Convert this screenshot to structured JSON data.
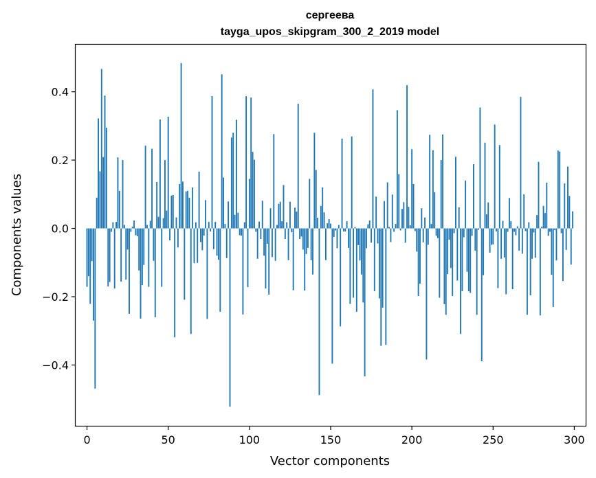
{
  "chart_data": {
    "type": "bar",
    "title": "сергеева",
    "subtitle": "tayga_upos_skipgram_300_2_2019 model",
    "xlabel": "Vector components",
    "ylabel": "Components values",
    "xlim": [
      -7,
      307
    ],
    "ylim": [
      -0.578,
      0.538
    ],
    "xticks": [
      0,
      50,
      100,
      150,
      200,
      250,
      300
    ],
    "yticks": [
      -0.4,
      -0.2,
      0.0,
      0.2,
      0.4
    ],
    "ytick_labels": [
      "−0.4",
      "−0.2",
      "0.0",
      "0.2",
      "0.4"
    ],
    "bar_color": "#1f77b4",
    "values": [
      -0.171,
      -0.14,
      -0.221,
      -0.096,
      -0.27,
      -0.469,
      0.09,
      0.322,
      0.167,
      0.467,
      0.209,
      0.389,
      0.295,
      -0.17,
      -0.157,
      -0.01,
      0.018,
      -0.176,
      0.019,
      0.208,
      0.11,
      -0.156,
      0.2,
      0.01,
      -0.15,
      -0.062,
      -0.25,
      -0.01,
      0.005,
      0.023,
      -0.02,
      -0.023,
      -0.123,
      -0.264,
      -0.166,
      -0.107,
      0.242,
      0.01,
      -0.171,
      0.022,
      0.233,
      -0.095,
      -0.26,
      0.136,
      0.034,
      0.319,
      -0.171,
      0.03,
      0.2,
      0.052,
      0.327,
      -0.035,
      0.096,
      0.098,
      -0.319,
      0.032,
      -0.056,
      0.13,
      0.484,
      0.137,
      -0.209,
      0.108,
      0.11,
      0.09,
      -0.309,
      0.12,
      -0.102,
      0.018,
      -0.101,
      0.166,
      -0.04,
      -0.064,
      -0.021,
      0.083,
      -0.265,
      0.019,
      -0.009,
      0.387,
      -0.061,
      0.019,
      -0.08,
      -0.092,
      -0.244,
      0.451,
      0.149,
      0.013,
      -0.087,
      0.079,
      -0.522,
      0.266,
      0.28,
      0.04,
      0.318,
      0.046,
      -0.02,
      -0.021,
      -0.252,
      0.018,
      0.387,
      -0.172,
      0.145,
      0.383,
      0.224,
      0.201,
      -0.01,
      -0.089,
      0.02,
      -0.031,
      0.081,
      -0.08,
      -0.176,
      -0.045,
      -0.194,
      0.059,
      -0.084,
      0.276,
      -0.095,
      0.01,
      0.072,
      0.078,
      0.021,
      0.127,
      -0.031,
      0.018,
      -0.093,
      0.078,
      -0.011,
      -0.181,
      0.061,
      0.049,
      0.365,
      -0.031,
      -0.024,
      -0.062,
      -0.182,
      -0.075,
      -0.057,
      0.145,
      -0.093,
      -0.135,
      0.28,
      0.171,
      0.031,
      -0.488,
      0.066,
      0.12,
      0.047,
      -0.093,
      0.015,
      0.027,
      0.014,
      -0.396,
      -0.025,
      -0.006,
      -0.058,
      0.01,
      -0.287,
      0.263,
      -0.009,
      -0.009,
      0.021,
      -0.057,
      -0.221,
      0.269,
      -0.203,
      0.004,
      -0.244,
      -0.049,
      -0.094,
      -0.135,
      -0.217,
      -0.433,
      -0.058,
      0.012,
      0.023,
      -0.042,
      0.407,
      -0.184,
      0.093,
      -0.044,
      -0.205,
      -0.344,
      -0.232,
      0.08,
      -0.341,
      0.135,
      0.004,
      -0.04,
      0.099,
      -0.01,
      0.013,
      0.346,
      0.159,
      -0.006,
      0.057,
      0.077,
      -0.042,
      0.419,
      0.063,
      0.009,
      0.232,
      0.13,
      -0.008,
      -0.068,
      -0.198,
      -0.162,
      0.059,
      -0.041,
      0.032,
      -0.384,
      -0.048,
      0.274,
      0.013,
      0.229,
      0.106,
      -0.022,
      -0.029,
      -0.203,
      0.2,
      0.275,
      -0.222,
      -0.253,
      -0.134,
      -0.033,
      -0.116,
      -0.198,
      -0.014,
      0.21,
      -0.153,
      0.062,
      -0.309,
      -0.184,
      -0.026,
      0.14,
      -0.127,
      -0.184,
      -0.189,
      -0.022,
      0.188,
      -0.065,
      -0.253,
      -0.004,
      0.354,
      -0.389,
      -0.137,
      0.251,
      0.041,
      0.076,
      -0.071,
      -0.048,
      -0.047,
      0.304,
      -0.009,
      -0.175,
      0.244,
      -0.089,
      0.022,
      -0.085,
      -0.193,
      -0.01,
      0.089,
      0.021,
      -0.178,
      -0.01,
      -0.02,
      0.006,
      -0.065,
      0.385,
      -0.074,
      0.1,
      -0.008,
      -0.253,
      0.018,
      -0.196,
      -0.089,
      -0.012,
      -0.086,
      0.039,
      0.195,
      -0.255,
      0.005,
      0.066,
      0.045,
      0.134,
      -0.022,
      -0.01,
      -0.136,
      -0.23,
      -0.005,
      -0.094,
      0.228,
      0.225,
      -0.014,
      -0.154,
      0.132,
      -0.063,
      0.181,
      0.095,
      -0.106,
      0.05
    ]
  }
}
